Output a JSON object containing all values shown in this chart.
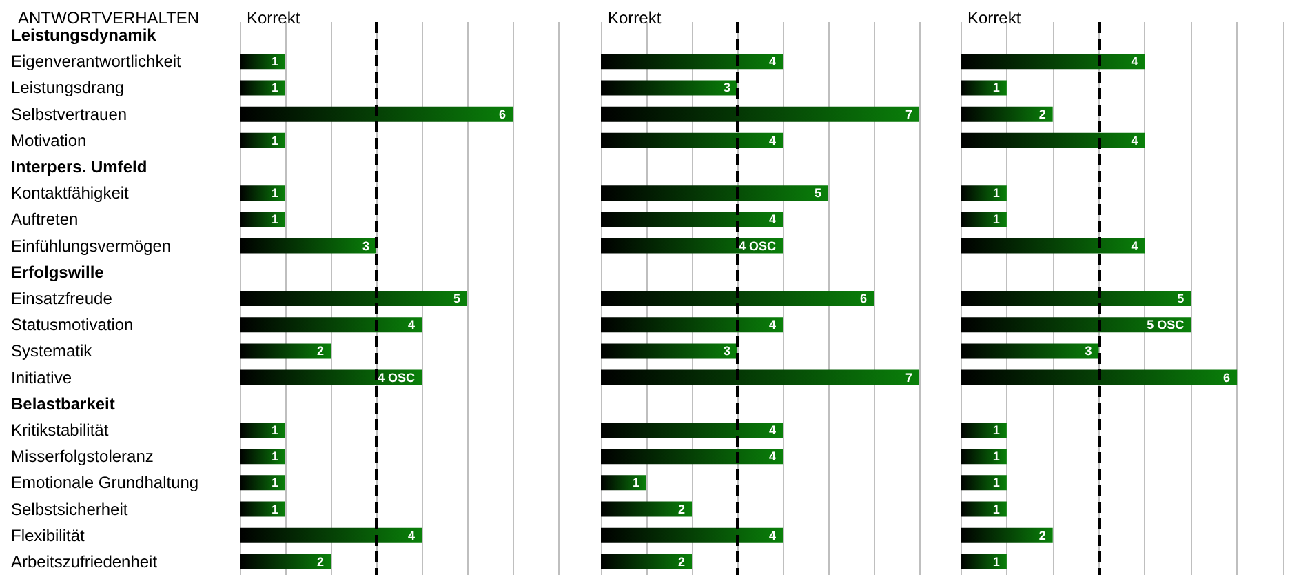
{
  "chart_data": [
    {
      "type": "bar",
      "orientation": "horizontal",
      "title": "Korrekt",
      "ylabel": "ANTWORTVERHALTEN",
      "categories": [
        "Leistungsdynamik",
        "Eigenverantwortlichkeit",
        "Leistungsdrang",
        "Selbstvertrauen",
        "Motivation",
        "Interpers. Umfeld",
        "Kontaktfähigkeit",
        "Auftreten",
        "Einfühlungsvermögen",
        "Erfolgswille",
        "Einsatzfreude",
        "Statusmotivation",
        "Systematik",
        "Initiative",
        "Belastbarkeit",
        "Kritikstabilität",
        "Misserfolgstoleranz",
        "Emotionale Grundhaltung",
        "Selbstsicherheit",
        "Flexibilität",
        "Arbeitszufriedenheit"
      ],
      "values": [
        null,
        1,
        1,
        6,
        1,
        null,
        1,
        1,
        3,
        null,
        5,
        4,
        2,
        4,
        null,
        1,
        1,
        1,
        1,
        4,
        2
      ],
      "value_labels": [
        null,
        "1",
        "1",
        "6",
        "1",
        null,
        "1",
        "1",
        "3",
        null,
        "5",
        "4",
        "2",
        "4 OSC",
        null,
        "1",
        "1",
        "1",
        "1",
        "4",
        "2"
      ],
      "color": "#0a800a",
      "xlim": [
        0,
        7
      ],
      "xticks": [
        {
          "value": 0,
          "label": null
        },
        {
          "value": 1,
          "label": null
        },
        {
          "value": 2,
          "label": null
        },
        {
          "value": 3,
          "label": null
        },
        {
          "value": 4,
          "label": null
        },
        {
          "value": 5,
          "label": null
        },
        {
          "value": 6,
          "label": null
        },
        {
          "value": 7,
          "label": null
        }
      ],
      "grid": "x",
      "tick_labels": "y",
      "ref_lines": [
        {
          "axis": "x",
          "value": 3,
          "color": "#000000",
          "line_style": "dashed"
        }
      ]
    },
    {
      "type": "bar",
      "orientation": "horizontal",
      "title": "Korrekt",
      "categories": [
        null,
        null,
        null,
        null,
        null,
        null,
        null,
        null,
        null,
        null,
        null,
        null,
        null,
        null,
        null,
        null,
        null,
        null,
        null,
        null,
        null
      ],
      "values": [
        null,
        4,
        3,
        7,
        4,
        null,
        5,
        4,
        4,
        null,
        6,
        4,
        3,
        7,
        null,
        4,
        4,
        1,
        2,
        4,
        2
      ],
      "value_labels": [
        null,
        "4",
        "3",
        "7",
        "4",
        null,
        "5",
        "4",
        "4 OSC",
        null,
        "6",
        "4",
        "3",
        "7",
        null,
        "4",
        "4",
        "1",
        "2",
        "4",
        "2"
      ],
      "color": "#0a800a",
      "xlim": [
        0,
        7
      ],
      "xticks": [
        {
          "value": 0,
          "label": null
        },
        {
          "value": 1,
          "label": null
        },
        {
          "value": 2,
          "label": null
        },
        {
          "value": 3,
          "label": null
        },
        {
          "value": 4,
          "label": null
        },
        {
          "value": 5,
          "label": null
        },
        {
          "value": 6,
          "label": null
        },
        {
          "value": 7,
          "label": null
        }
      ],
      "grid": "x",
      "tick_labels": false,
      "ref_lines": [
        {
          "axis": "x",
          "value": 3,
          "color": "#000000",
          "line_style": "dashed"
        }
      ]
    },
    {
      "type": "bar",
      "orientation": "horizontal",
      "title": "Korrekt",
      "categories": [
        null,
        null,
        null,
        null,
        null,
        null,
        null,
        null,
        null,
        null,
        null,
        null,
        null,
        null,
        null,
        null,
        null,
        null,
        null,
        null,
        null
      ],
      "values": [
        null,
        4,
        1,
        2,
        4,
        null,
        1,
        1,
        4,
        null,
        5,
        5,
        3,
        6,
        null,
        1,
        1,
        1,
        1,
        2,
        1
      ],
      "value_labels": [
        null,
        "4",
        "1",
        "2",
        "4",
        null,
        "1",
        "1",
        "4",
        null,
        "5",
        "5 OSC",
        "3",
        "6",
        null,
        "1",
        "1",
        "1",
        "1",
        "2",
        "1"
      ],
      "color": "#0a800a",
      "xlim": [
        0,
        7
      ],
      "xticks": [
        {
          "value": 0,
          "label": null
        },
        {
          "value": 1,
          "label": null
        },
        {
          "value": 2,
          "label": null
        },
        {
          "value": 3,
          "label": null
        },
        {
          "value": 4,
          "label": null
        },
        {
          "value": 5,
          "label": null
        },
        {
          "value": 6,
          "label": null
        },
        {
          "value": 7,
          "label": null
        }
      ],
      "grid": "x",
      "tick_labels": false,
      "ref_lines": [
        {
          "axis": "x",
          "value": 3,
          "color": "#000000",
          "line_style": "dashed"
        }
      ]
    }
  ]
}
